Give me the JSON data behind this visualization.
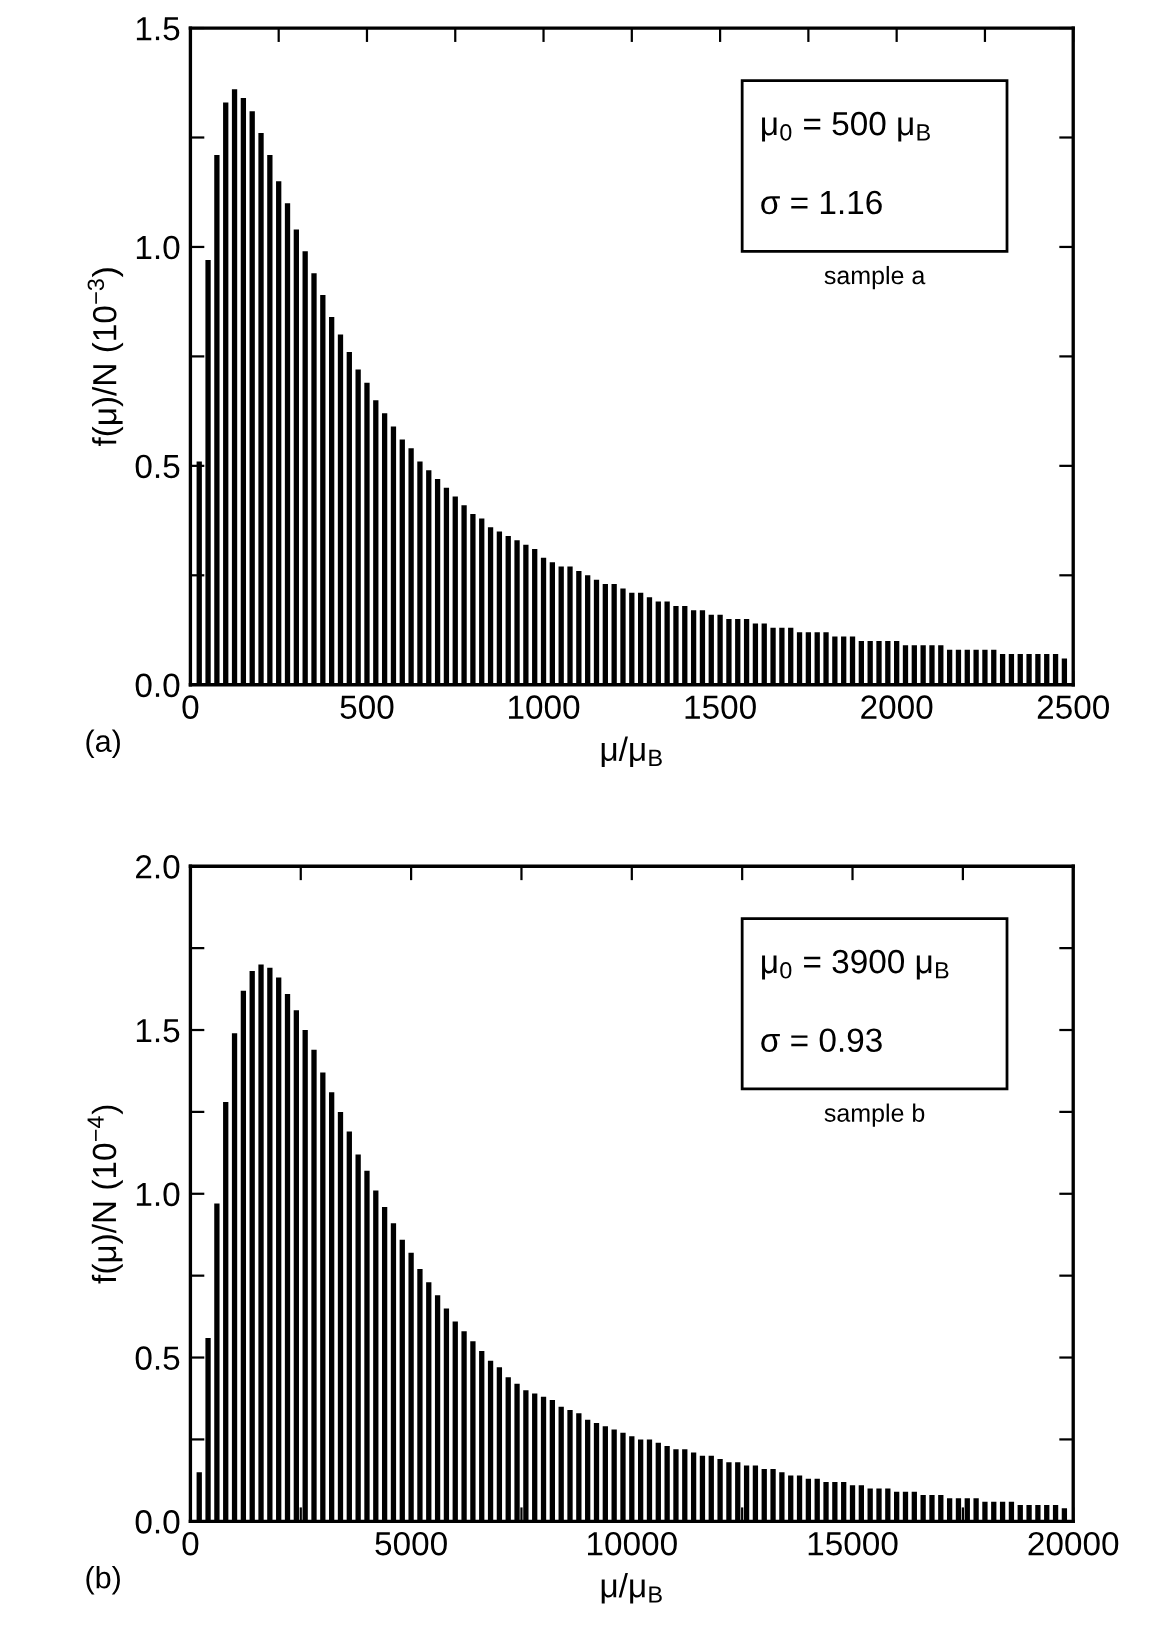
{
  "chart_data": [
    {
      "type": "bar",
      "xlabel": "μ/μ$_{B}$",
      "ylabel": "f(μ)/N (10$^{−3}$)",
      "annotations": [
        "μ$_{0}$ = 500 μ$_{B}$",
        "σ = 1.16",
        "sample a",
        "(a)"
      ],
      "x": [
        25,
        50,
        75,
        100,
        125,
        150,
        175,
        200,
        225,
        250,
        275,
        300,
        325,
        350,
        375,
        400,
        425,
        450,
        475,
        500,
        525,
        550,
        575,
        600,
        625,
        650,
        675,
        700,
        725,
        750,
        775,
        800,
        825,
        850,
        875,
        900,
        925,
        950,
        975,
        1000,
        1025,
        1050,
        1075,
        1100,
        1125,
        1150,
        1175,
        1200,
        1225,
        1250,
        1275,
        1300,
        1325,
        1350,
        1375,
        1400,
        1425,
        1450,
        1475,
        1500,
        1525,
        1550,
        1575,
        1600,
        1625,
        1650,
        1675,
        1700,
        1725,
        1750,
        1775,
        1800,
        1825,
        1850,
        1875,
        1900,
        1925,
        1950,
        1975,
        2000,
        2025,
        2050,
        2075,
        2100,
        2125,
        2150,
        2175,
        2200,
        2225,
        2250,
        2275,
        2300,
        2325,
        2350,
        2375,
        2400,
        2425,
        2450,
        2475
      ],
      "series": [
        {
          "color": "#000000",
          "values": [
            0.51,
            0.97,
            1.21,
            1.33,
            1.36,
            1.34,
            1.31,
            1.26,
            1.21,
            1.15,
            1.1,
            1.04,
            0.99,
            0.94,
            0.89,
            0.84,
            0.8,
            0.76,
            0.72,
            0.69,
            0.65,
            0.62,
            0.59,
            0.56,
            0.54,
            0.51,
            0.49,
            0.47,
            0.45,
            0.43,
            0.41,
            0.39,
            0.38,
            0.36,
            0.35,
            0.34,
            0.33,
            0.32,
            0.31,
            0.29,
            0.28,
            0.27,
            0.27,
            0.26,
            0.25,
            0.24,
            0.23,
            0.23,
            0.22,
            0.21,
            0.21,
            0.2,
            0.19,
            0.19,
            0.18,
            0.18,
            0.17,
            0.17,
            0.16,
            0.16,
            0.15,
            0.15,
            0.15,
            0.14,
            0.14,
            0.13,
            0.13,
            0.13,
            0.12,
            0.12,
            0.12,
            0.12,
            0.11,
            0.11,
            0.11,
            0.1,
            0.1,
            0.1,
            0.1,
            0.1,
            0.09,
            0.09,
            0.09,
            0.09,
            0.09,
            0.08,
            0.08,
            0.08,
            0.08,
            0.08,
            0.08,
            0.07,
            0.07,
            0.07,
            0.07,
            0.07,
            0.07,
            0.07,
            0.06
          ]
        }
      ],
      "xlim": [
        0,
        2500
      ],
      "xticks": [
        0,
        {
          "value": 250,
          "label": null
        },
        500,
        {
          "value": 750,
          "label": null
        },
        1000,
        {
          "value": 1250,
          "label": null
        },
        1500,
        {
          "value": 1750,
          "label": null
        },
        2000,
        {
          "value": 2250,
          "label": null
        },
        2500
      ],
      "ylim": [
        0,
        1.5
      ],
      "yticks": [
        {
          "value": 0,
          "label": "0.0"
        },
        {
          "value": 0.25,
          "label": null
        },
        {
          "value": 0.5,
          "label": "0.5"
        },
        {
          "value": 0.75,
          "label": null
        },
        {
          "value": 1,
          "label": "1.0"
        },
        {
          "value": 1.25,
          "label": null
        },
        {
          "value": 1.5,
          "label": "1.5"
        }
      ],
      "grid": false,
      "legend": false
    },
    {
      "type": "bar",
      "xlabel": "μ/μ$_{B}$",
      "ylabel": "f(μ)/N (10$^{−4}$)",
      "annotations": [
        "μ$_{0}$ = 3900 μ$_{B}$",
        "σ = 0.93",
        "sample b",
        "(b)"
      ],
      "x": [
        200,
        400,
        600,
        800,
        1000,
        1200,
        1400,
        1600,
        1800,
        2000,
        2200,
        2400,
        2600,
        2800,
        3000,
        3200,
        3400,
        3600,
        3800,
        4000,
        4200,
        4400,
        4600,
        4800,
        5000,
        5200,
        5400,
        5600,
        5800,
        6000,
        6200,
        6400,
        6600,
        6800,
        7000,
        7200,
        7400,
        7600,
        7800,
        8000,
        8200,
        8400,
        8600,
        8800,
        9000,
        9200,
        9400,
        9600,
        9800,
        10000,
        10200,
        10400,
        10600,
        10800,
        11000,
        11200,
        11400,
        11600,
        11800,
        12000,
        12200,
        12400,
        12600,
        12800,
        13000,
        13200,
        13400,
        13600,
        13800,
        14000,
        14200,
        14400,
        14600,
        14800,
        15000,
        15200,
        15400,
        15600,
        15800,
        16000,
        16200,
        16400,
        16600,
        16800,
        17000,
        17200,
        17400,
        17600,
        17800,
        18000,
        18200,
        18400,
        18600,
        18800,
        19000,
        19200,
        19400,
        19600,
        19800
      ],
      "series": [
        {
          "color": "#000000",
          "values": [
            0.15,
            0.56,
            0.97,
            1.28,
            1.49,
            1.62,
            1.68,
            1.7,
            1.69,
            1.66,
            1.61,
            1.56,
            1.5,
            1.44,
            1.37,
            1.31,
            1.25,
            1.19,
            1.12,
            1.07,
            1.01,
            0.96,
            0.91,
            0.86,
            0.82,
            0.77,
            0.73,
            0.69,
            0.65,
            0.61,
            0.58,
            0.55,
            0.52,
            0.49,
            0.47,
            0.44,
            0.42,
            0.4,
            0.39,
            0.38,
            0.37,
            0.35,
            0.34,
            0.33,
            0.31,
            0.3,
            0.29,
            0.28,
            0.27,
            0.26,
            0.25,
            0.25,
            0.24,
            0.23,
            0.22,
            0.22,
            0.21,
            0.2,
            0.2,
            0.19,
            0.18,
            0.18,
            0.17,
            0.17,
            0.16,
            0.16,
            0.15,
            0.14,
            0.14,
            0.13,
            0.13,
            0.12,
            0.12,
            0.12,
            0.11,
            0.11,
            0.1,
            0.1,
            0.1,
            0.09,
            0.09,
            0.09,
            0.08,
            0.08,
            0.08,
            0.07,
            0.07,
            0.07,
            0.07,
            0.06,
            0.06,
            0.06,
            0.06,
            0.05,
            0.05,
            0.05,
            0.05,
            0.05,
            0.04
          ]
        }
      ],
      "xlim": [
        0,
        20000
      ],
      "xticks": [
        0,
        {
          "value": 2500,
          "label": null
        },
        5000,
        {
          "value": 7500,
          "label": null
        },
        10000,
        {
          "value": 12500,
          "label": null
        },
        15000,
        {
          "value": 17500,
          "label": null
        },
        20000
      ],
      "ylim": [
        0,
        2.0
      ],
      "yticks": [
        {
          "value": 0,
          "label": "0.0"
        },
        {
          "value": 0.25,
          "label": null
        },
        {
          "value": 0.5,
          "label": "0.5"
        },
        {
          "value": 0.75,
          "label": null
        },
        {
          "value": 1,
          "label": "1.0"
        },
        {
          "value": 1.25,
          "label": null
        },
        {
          "value": 1.5,
          "label": "1.5"
        },
        {
          "value": 1.75,
          "label": null
        },
        {
          "value": 2,
          "label": "2.0"
        }
      ],
      "grid": false,
      "legend": false
    }
  ]
}
